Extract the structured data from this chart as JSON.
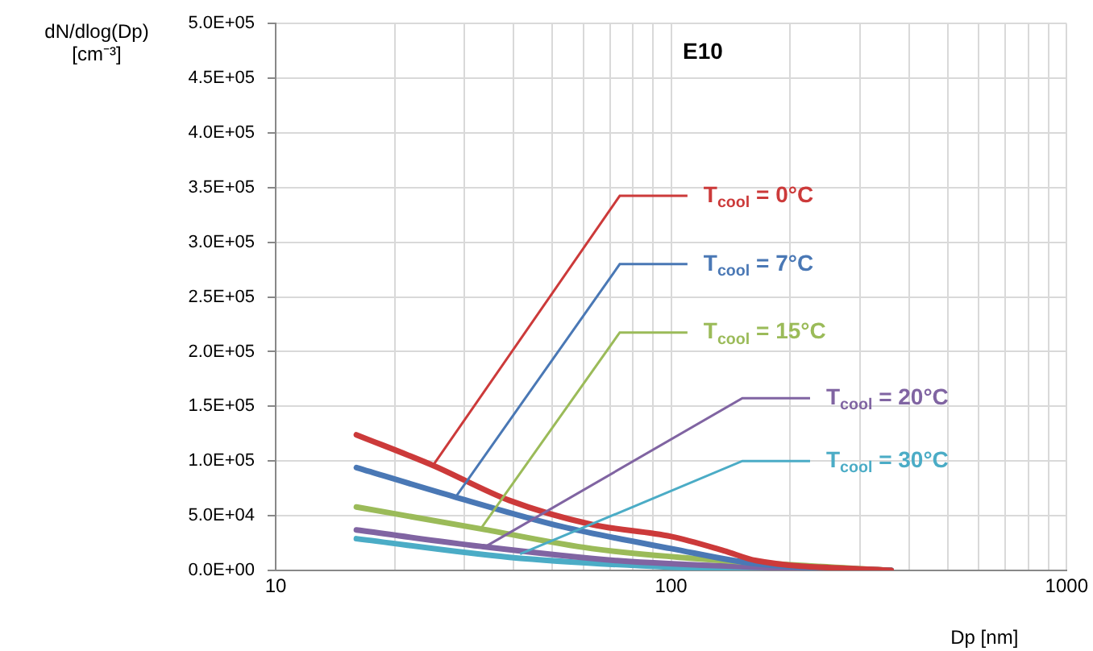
{
  "chart_data": {
    "type": "line",
    "title": "E10",
    "xlabel": "Dp [nm]",
    "ylabel": "dN/dlog(Dp)\n[cm⁻³]",
    "log": "x",
    "xlim": [
      10,
      1000
    ],
    "xticks": [
      10,
      {
        "value": 20,
        "label": null
      },
      {
        "value": 30,
        "label": null
      },
      {
        "value": 40,
        "label": null
      },
      {
        "value": 50,
        "label": null
      },
      {
        "value": 60,
        "label": null
      },
      {
        "value": 70,
        "label": null
      },
      {
        "value": 80,
        "label": null
      },
      {
        "value": 90,
        "label": null
      },
      100,
      {
        "value": 200,
        "label": null
      },
      {
        "value": 300,
        "label": null
      },
      {
        "value": 400,
        "label": null
      },
      {
        "value": 500,
        "label": null
      },
      {
        "value": 600,
        "label": null
      },
      {
        "value": 700,
        "label": null
      },
      {
        "value": 800,
        "label": null
      },
      {
        "value": 900,
        "label": null
      },
      1000
    ],
    "ylim": [
      0,
      500000
    ],
    "yticks": [
      {
        "value": 0,
        "label": "0.0E+00"
      },
      {
        "value": 50000,
        "label": "5.0E+04"
      },
      {
        "value": 100000,
        "label": "1.0E+05"
      },
      {
        "value": 150000,
        "label": "1.5E+05"
      },
      {
        "value": 200000,
        "label": "2.0E+05"
      },
      {
        "value": 250000,
        "label": "2.5E+05"
      },
      {
        "value": 300000,
        "label": "3.0E+05"
      },
      {
        "value": 350000,
        "label": "3.5E+05"
      },
      {
        "value": 400000,
        "label": "4.0E+05"
      },
      {
        "value": 450000,
        "label": "4.5E+05"
      },
      {
        "value": 500000,
        "label": "5.0E+05"
      }
    ],
    "grid": true,
    "legend": false,
    "marker": "none",
    "line_style": "solid",
    "series": [
      {
        "color": "#cc3a3a",
        "x": [
          16,
          25,
          39,
          63,
          100,
          136,
          164,
          360
        ],
        "values": [
          124000,
          96000,
          64000,
          42000,
          31000,
          18000,
          9000,
          0
        ]
      },
      {
        "color": "#4a78b5",
        "x": [
          16,
          28.5,
          53,
          100,
          164,
          360
        ],
        "values": [
          94000,
          67000,
          40000,
          20000,
          6000,
          0
        ]
      },
      {
        "color": "#9bbb59",
        "x": [
          16,
          33,
          63,
          136,
          360
        ],
        "values": [
          58000,
          38000,
          20000,
          9000,
          0
        ]
      },
      {
        "color": "#8064a2",
        "x": [
          16,
          33,
          73,
          164,
          360
        ],
        "values": [
          37000,
          22000,
          9000,
          3000,
          0
        ]
      },
      {
        "color": "#4bacc6",
        "x": [
          16,
          39,
          100,
          164,
          360
        ],
        "values": [
          29000,
          12000,
          3000,
          1000,
          0
        ]
      }
    ],
    "annotations": [
      {
        "text": "T$_{cool}$ = 0°C",
        "x": 25,
        "y": 96000
      },
      {
        "text": "T$_{cool}$ = 7°C",
        "x": 28.5,
        "y": 67000
      },
      {
        "text": "T$_{cool}$ = 15°C",
        "x": 33,
        "y": 38000
      },
      {
        "text": "T$_{cool}$ = 20°C",
        "x": 34,
        "y": 22000
      },
      {
        "text": "T$_{cool}$ = 30°C",
        "x": 41.5,
        "y": 15000
      }
    ]
  }
}
